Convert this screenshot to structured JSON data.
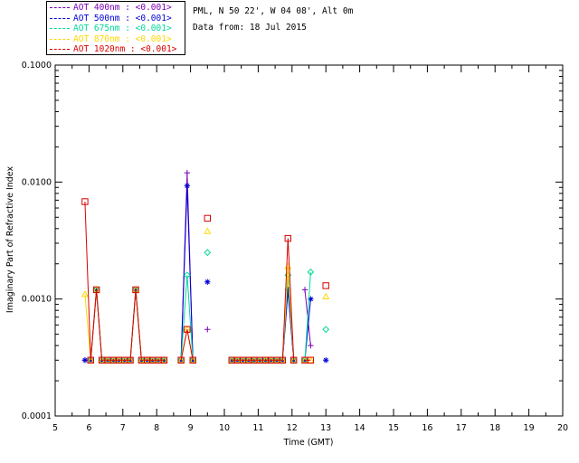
{
  "legend": [
    {
      "label": "AOT  400nm : <0.001>",
      "color": "#7b00b7"
    },
    {
      "label": "AOT  500nm : <0.001>",
      "color": "#0000d8"
    },
    {
      "label": "AOT  675nm : <0.001>",
      "color": "#00d89a"
    },
    {
      "label": "AOT  870nm : <0.001>",
      "color": "#ffd800"
    },
    {
      "label": "AOT 1020nm : <0.001>",
      "color": "#d80000"
    }
  ],
  "info": {
    "site": "PML, N 50 22', W 04 08', Alt 0m",
    "date": "Data from: 18 Jul 2015"
  },
  "chart_data": {
    "type": "line",
    "xlabel": "Time (GMT)",
    "ylabel": "Imaginary Part of Refractive Index",
    "xlim": [
      5,
      20
    ],
    "ylim": [
      0.0001,
      0.1
    ],
    "yscale": "log",
    "xticks": [
      "5",
      "6",
      "7",
      "8",
      "9",
      "10",
      "11",
      "12",
      "13",
      "14",
      "15",
      "16",
      "17",
      "18",
      "19",
      "20"
    ],
    "yticks": [
      {
        "value": 0.0001,
        "label": "0.0001"
      },
      {
        "value": 0.001,
        "label": "0.0010"
      },
      {
        "value": 0.01,
        "label": "0.0100"
      },
      {
        "value": 0.1,
        "label": "0.1000"
      }
    ],
    "series": [
      {
        "name": "AOT  400nm : <0.001>",
        "color": "#7b00b7",
        "marker": "plus",
        "points": [
          [
            5.88,
            0.0003
          ],
          [
            6.05,
            0.0003
          ],
          [
            6.22,
            0.0012
          ],
          [
            6.38,
            0.0003
          ],
          [
            6.55,
            0.0003
          ],
          [
            6.72,
            0.0003
          ],
          [
            6.88,
            0.0003
          ],
          [
            7.05,
            0.0003
          ],
          [
            7.22,
            0.0003
          ],
          [
            7.38,
            0.0012
          ],
          [
            7.55,
            0.0003
          ],
          [
            7.72,
            0.0003
          ],
          [
            7.88,
            0.0003
          ],
          [
            8.05,
            0.0003
          ],
          [
            8.22,
            0.0003
          ],
          null,
          [
            8.72,
            0.0003
          ],
          [
            8.9,
            0.012
          ],
          [
            9.07,
            0.0003
          ],
          null,
          [
            10.22,
            0.0003
          ],
          [
            10.38,
            0.0003
          ],
          [
            10.55,
            0.0003
          ],
          [
            10.72,
            0.0003
          ],
          [
            10.88,
            0.0003
          ],
          [
            11.05,
            0.0003
          ],
          [
            11.22,
            0.0003
          ],
          [
            11.38,
            0.0003
          ],
          [
            11.55,
            0.0003
          ],
          [
            11.72,
            0.0003
          ],
          [
            11.88,
            0.0012
          ],
          [
            12.05,
            0.0003
          ],
          null,
          [
            12.38,
            0.0012
          ],
          [
            12.55,
            0.0004
          ]
        ],
        "standalone": [
          [
            9.5,
            0.00055
          ]
        ]
      },
      {
        "name": "AOT  500nm : <0.001>",
        "color": "#0000d8",
        "marker": "asterisk",
        "points": [
          [
            5.88,
            0.0003
          ],
          [
            6.05,
            0.0003
          ],
          [
            6.22,
            0.0012
          ],
          [
            6.38,
            0.0003
          ],
          [
            6.55,
            0.0003
          ],
          [
            6.72,
            0.0003
          ],
          [
            6.88,
            0.0003
          ],
          [
            7.05,
            0.0003
          ],
          [
            7.22,
            0.0003
          ],
          [
            7.38,
            0.0012
          ],
          [
            7.55,
            0.0003
          ],
          [
            7.72,
            0.0003
          ],
          [
            7.88,
            0.0003
          ],
          [
            8.05,
            0.0003
          ],
          [
            8.22,
            0.0003
          ],
          null,
          [
            8.72,
            0.0003
          ],
          [
            8.9,
            0.0093
          ],
          [
            9.07,
            0.0003
          ],
          null,
          [
            10.22,
            0.0003
          ],
          [
            10.38,
            0.0003
          ],
          [
            10.55,
            0.0003
          ],
          [
            10.72,
            0.0003
          ],
          [
            10.88,
            0.0003
          ],
          [
            11.05,
            0.0003
          ],
          [
            11.22,
            0.0003
          ],
          [
            11.38,
            0.0003
          ],
          [
            11.55,
            0.0003
          ],
          [
            11.72,
            0.0003
          ],
          [
            11.88,
            0.0012
          ],
          [
            12.05,
            0.0003
          ],
          null,
          [
            12.38,
            0.0003
          ],
          [
            12.55,
            0.001
          ]
        ],
        "standalone": [
          [
            9.5,
            0.0014
          ],
          [
            13.0,
            0.0003
          ]
        ]
      },
      {
        "name": "AOT  675nm : <0.001>",
        "color": "#00d89a",
        "marker": "diamond",
        "points": [
          [
            6.05,
            0.0003
          ],
          [
            6.22,
            0.0012
          ],
          [
            6.38,
            0.0003
          ],
          [
            6.55,
            0.0003
          ],
          [
            6.72,
            0.0003
          ],
          [
            6.88,
            0.0003
          ],
          [
            7.05,
            0.0003
          ],
          [
            7.22,
            0.0003
          ],
          [
            7.38,
            0.0012
          ],
          [
            7.55,
            0.0003
          ],
          [
            7.72,
            0.0003
          ],
          [
            7.88,
            0.0003
          ],
          [
            8.05,
            0.0003
          ],
          [
            8.22,
            0.0003
          ],
          null,
          [
            8.72,
            0.0003
          ],
          [
            8.9,
            0.0016
          ],
          [
            9.07,
            0.0003
          ],
          null,
          [
            10.22,
            0.0003
          ],
          [
            10.38,
            0.0003
          ],
          [
            10.55,
            0.0003
          ],
          [
            10.72,
            0.0003
          ],
          [
            10.88,
            0.0003
          ],
          [
            11.05,
            0.0003
          ],
          [
            11.22,
            0.0003
          ],
          [
            11.38,
            0.0003
          ],
          [
            11.55,
            0.0003
          ],
          [
            11.72,
            0.0003
          ],
          [
            11.88,
            0.0016
          ],
          [
            12.05,
            0.0003
          ],
          null,
          [
            12.38,
            0.0003
          ],
          [
            12.55,
            0.0017
          ]
        ],
        "standalone": [
          [
            9.5,
            0.0025
          ],
          [
            13.0,
            0.00055
          ]
        ]
      },
      {
        "name": "AOT  870nm : <0.001>",
        "color": "#ffd800",
        "marker": "triangle",
        "points": [
          [
            5.88,
            0.0011
          ],
          [
            6.05,
            0.0003
          ],
          [
            6.22,
            0.0012
          ],
          [
            6.38,
            0.0003
          ],
          [
            6.55,
            0.0003
          ],
          [
            6.72,
            0.0003
          ],
          [
            6.88,
            0.0003
          ],
          [
            7.05,
            0.0003
          ],
          [
            7.22,
            0.0003
          ],
          [
            7.38,
            0.0012
          ],
          [
            7.55,
            0.0003
          ],
          [
            7.72,
            0.0003
          ],
          [
            7.88,
            0.0003
          ],
          [
            8.05,
            0.0003
          ],
          [
            8.22,
            0.0003
          ],
          null,
          [
            8.72,
            0.0003
          ],
          [
            8.9,
            0.00055
          ],
          [
            9.07,
            0.0003
          ],
          null,
          [
            10.22,
            0.0003
          ],
          [
            10.38,
            0.0003
          ],
          [
            10.55,
            0.0003
          ],
          [
            10.72,
            0.0003
          ],
          [
            10.88,
            0.0003
          ],
          [
            11.05,
            0.0003
          ],
          [
            11.22,
            0.0003
          ],
          [
            11.38,
            0.0003
          ],
          [
            11.55,
            0.0003
          ],
          [
            11.72,
            0.0003
          ],
          [
            11.88,
            0.0019
          ],
          [
            12.05,
            0.0003
          ],
          null,
          [
            12.38,
            0.0003
          ],
          [
            12.55,
            0.0003
          ]
        ],
        "standalone": [
          [
            9.5,
            0.0038
          ],
          [
            13.0,
            0.00105
          ]
        ]
      },
      {
        "name": "AOT 1020nm : <0.001>",
        "color": "#d80000",
        "marker": "square",
        "points": [
          [
            5.88,
            0.0068
          ],
          [
            6.05,
            0.0003
          ],
          [
            6.22,
            0.0012
          ],
          [
            6.38,
            0.0003
          ],
          [
            6.55,
            0.0003
          ],
          [
            6.72,
            0.0003
          ],
          [
            6.88,
            0.0003
          ],
          [
            7.05,
            0.0003
          ],
          [
            7.22,
            0.0003
          ],
          [
            7.38,
            0.0012
          ],
          [
            7.55,
            0.0003
          ],
          [
            7.72,
            0.0003
          ],
          [
            7.88,
            0.0003
          ],
          [
            8.05,
            0.0003
          ],
          [
            8.22,
            0.0003
          ],
          null,
          [
            8.72,
            0.0003
          ],
          [
            8.9,
            0.00055
          ],
          [
            9.07,
            0.0003
          ],
          null,
          [
            10.22,
            0.0003
          ],
          [
            10.38,
            0.0003
          ],
          [
            10.55,
            0.0003
          ],
          [
            10.72,
            0.0003
          ],
          [
            10.88,
            0.0003
          ],
          [
            11.05,
            0.0003
          ],
          [
            11.22,
            0.0003
          ],
          [
            11.38,
            0.0003
          ],
          [
            11.55,
            0.0003
          ],
          [
            11.72,
            0.0003
          ],
          [
            11.88,
            0.0033
          ],
          [
            12.05,
            0.0003
          ],
          null,
          [
            12.38,
            0.0003
          ],
          [
            12.55,
            0.0003
          ]
        ],
        "standalone": [
          [
            9.5,
            0.0049
          ],
          [
            13.0,
            0.0013
          ]
        ]
      }
    ]
  }
}
